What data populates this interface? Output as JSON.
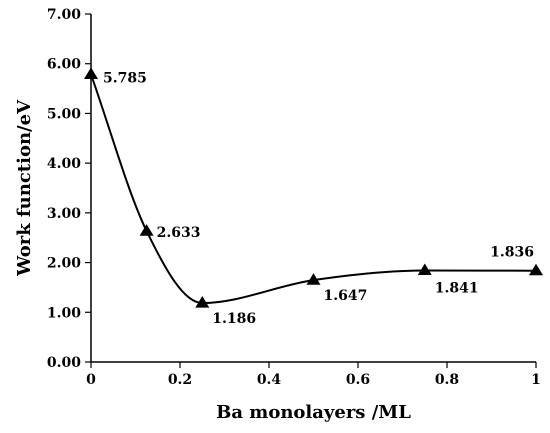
{
  "chart_data": {
    "type": "line",
    "xlabel": "Ba monolayers /ML",
    "ylabel": "Work function/eV",
    "xlim": [
      0,
      1
    ],
    "ylim": [
      0,
      7
    ],
    "x_ticks": [
      "0",
      "0.2",
      "0.4",
      "0.6",
      "0.8",
      "1"
    ],
    "y_ticks": [
      "0.00",
      "1.00",
      "2.00",
      "3.00",
      "4.00",
      "5.00",
      "6.00",
      "7.00"
    ],
    "grid": false,
    "legend": "none",
    "marker": "triangle",
    "smooth": true,
    "series": [
      {
        "x": [
          0,
          0.125,
          0.25,
          0.5,
          0.75,
          1
        ],
        "y": [
          5.785,
          2.633,
          1.186,
          1.647,
          1.841,
          1.836
        ],
        "labels": [
          "5.785",
          "2.633",
          "1.186",
          "1.647",
          "1.841",
          "1.836"
        ]
      }
    ]
  }
}
